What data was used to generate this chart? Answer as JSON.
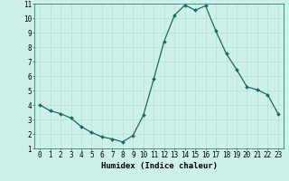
{
  "x": [
    0,
    1,
    2,
    3,
    4,
    5,
    6,
    7,
    8,
    9,
    10,
    11,
    12,
    13,
    14,
    15,
    16,
    17,
    18,
    19,
    20,
    21,
    22,
    23
  ],
  "y": [
    4.0,
    3.6,
    3.4,
    3.1,
    2.5,
    2.1,
    1.8,
    1.65,
    1.45,
    1.9,
    3.3,
    5.8,
    8.4,
    10.2,
    10.9,
    10.55,
    10.85,
    9.1,
    7.55,
    6.45,
    5.25,
    5.05,
    4.7,
    3.4
  ],
  "line_color": "#1a6b5a",
  "marker": "D",
  "markersize": 2.0,
  "linewidth": 0.9,
  "bg_color": "#cef0ea",
  "grid_color": "#b0ddd6",
  "xlabel": "Humidex (Indice chaleur)",
  "xlabel_fontsize": 6.5,
  "xlim": [
    -0.5,
    23.5
  ],
  "ylim": [
    1,
    11
  ],
  "yticks": [
    1,
    2,
    3,
    4,
    5,
    6,
    7,
    8,
    9,
    10,
    11
  ],
  "xticks": [
    0,
    1,
    2,
    3,
    4,
    5,
    6,
    7,
    8,
    9,
    10,
    11,
    12,
    13,
    14,
    15,
    16,
    17,
    18,
    19,
    20,
    21,
    22,
    23
  ],
  "tick_fontsize": 5.5,
  "fig_bg_color": "#cef0ea"
}
